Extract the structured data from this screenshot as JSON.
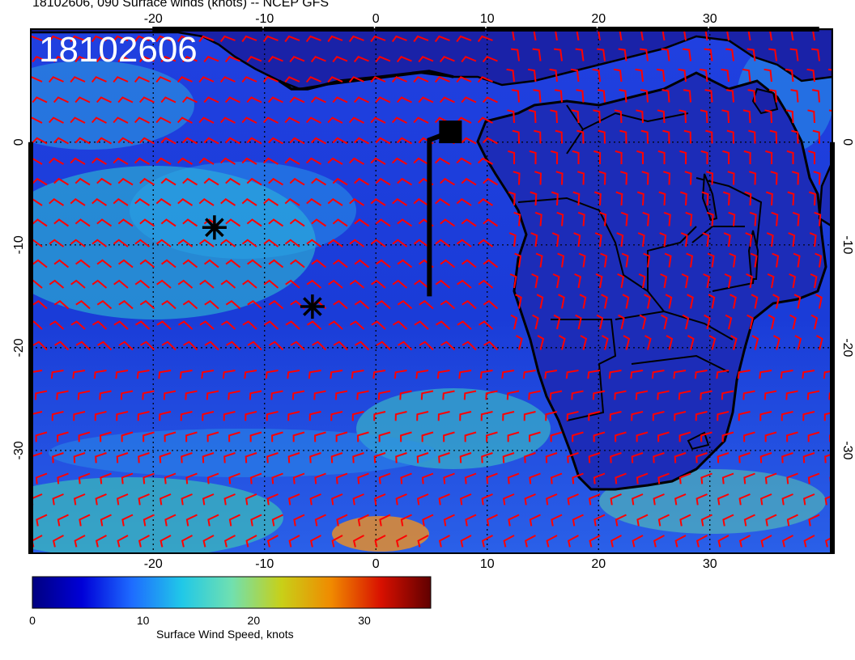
{
  "header": {
    "title": "18102606, 090 Surface winds (knots) -- NCEP GFS"
  },
  "map": {
    "stamp": "18102606",
    "lon_ticks": [
      "-20",
      "-10",
      "0",
      "10",
      "20",
      "30"
    ],
    "lat_ticks": [
      "0",
      "-10",
      "-20",
      "-30"
    ],
    "lon_range": [
      -31,
      41
    ],
    "lat_range": [
      -40,
      11
    ],
    "barb_color": "#ff0000",
    "coast_color": "#000000",
    "markers": [
      {
        "type": "asterisk",
        "lon": -14.5,
        "lat": -8.3
      },
      {
        "type": "asterisk",
        "lon": -5.7,
        "lat": -16.0
      },
      {
        "type": "square-with-tail",
        "lon": 6.7,
        "lat": 1.0,
        "tail_end_lat": -15.0
      }
    ]
  },
  "colorbar": {
    "title": "Surface Wind Speed, knots",
    "ticks": [
      "0",
      "10",
      "20",
      "30"
    ],
    "range": [
      0,
      36
    ],
    "colors": [
      "#000080",
      "#0000d8",
      "#1e6cff",
      "#20c8e8",
      "#70e0b0",
      "#c8d018",
      "#f08a00",
      "#d81000",
      "#600000"
    ]
  }
}
